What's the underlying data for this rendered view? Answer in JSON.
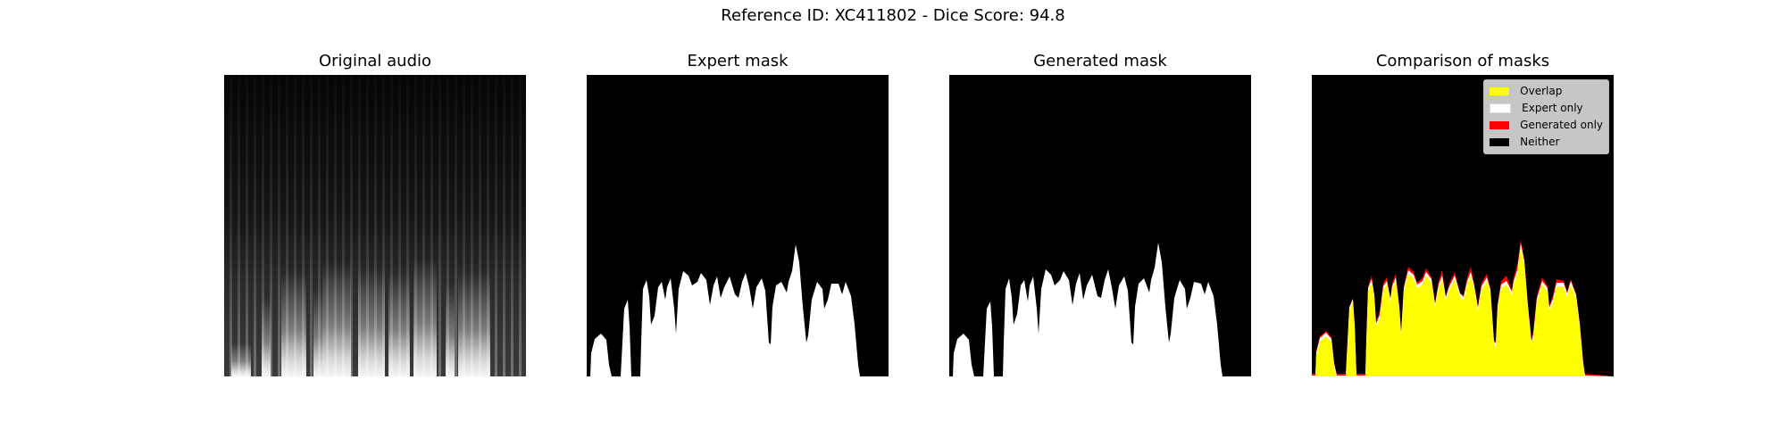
{
  "figure": {
    "suptitle": "Reference ID: XC411802 - Dice Score: 94.8"
  },
  "panels": [
    {
      "title": "Original audio"
    },
    {
      "title": "Expert mask"
    },
    {
      "title": "Generated mask"
    },
    {
      "title": "Comparison of masks"
    }
  ],
  "legend": {
    "placement": "top-right",
    "items": [
      {
        "label": "Overlap",
        "color": "#ffff00"
      },
      {
        "label": "Expert only",
        "color": "#ffffff"
      },
      {
        "label": "Generated only",
        "color": "#ff0000"
      },
      {
        "label": "Neither",
        "color": "#000000"
      }
    ]
  }
}
